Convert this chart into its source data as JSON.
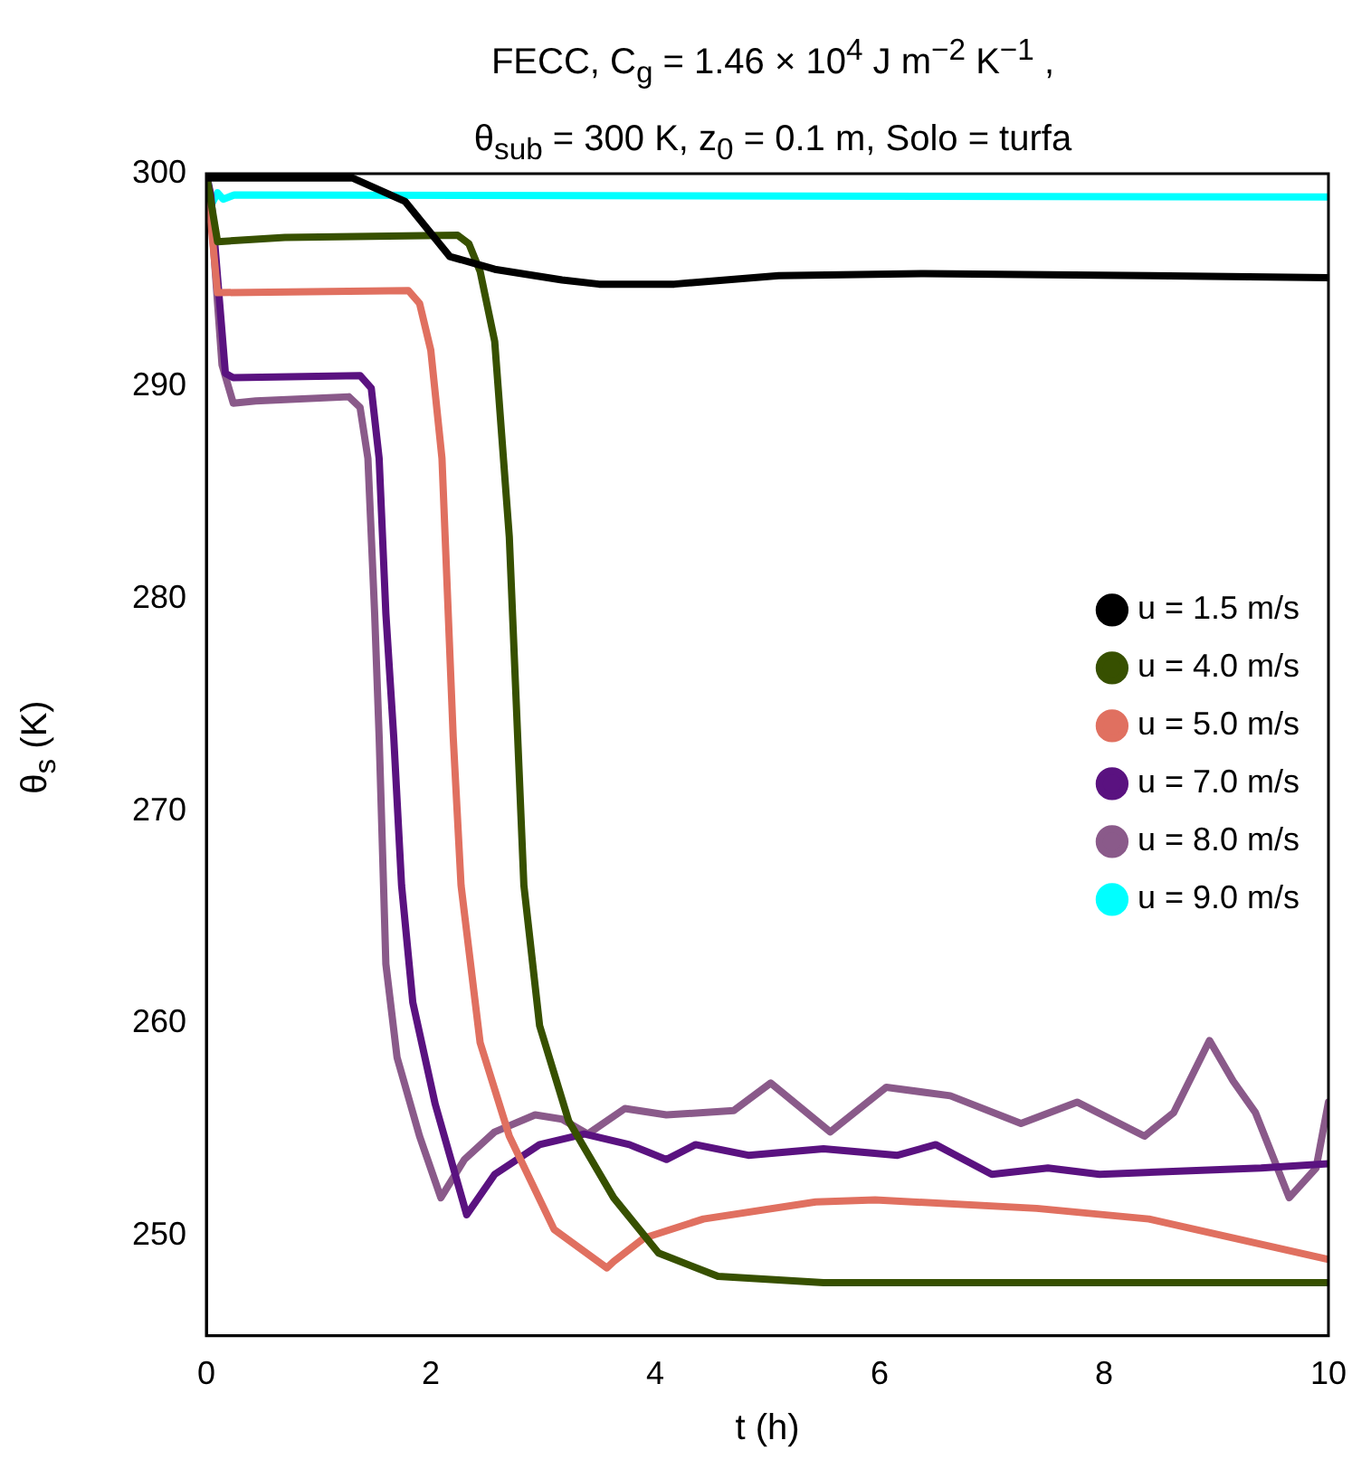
{
  "chart_data": {
    "type": "line",
    "title": "FECC, C$_{g}$ = 1.46 × 10$^{4}$ J m$^{−2}$ K$^{−1}$ ,",
    "subtitle": "θ$_{sub}$ = 300 K, z$_{0}$ = 0.1 m, Solo = turfa",
    "xlabel": "t (h)",
    "ylabel": "θ$_{s}$ (K)",
    "xlim": [
      0,
      10
    ],
    "xticks": [
      0,
      2,
      4,
      6,
      8,
      10
    ],
    "ylim": [
      245.3,
      300
    ],
    "yticks": [
      250,
      260,
      270,
      280,
      290,
      300
    ],
    "grid": false,
    "legend": "right",
    "marker": "none",
    "line_style": "solid",
    "series": [
      {
        "name": "u = 1.5 m/s",
        "color": "#000000",
        "x": [
          0,
          1.3,
          1.77,
          2.17,
          2.57,
          3.17,
          3.5,
          4.17,
          5.1,
          6.4,
          8.4,
          10
        ],
        "values": [
          299.8,
          299.8,
          298.7,
          296.1,
          295.5,
          295.0,
          294.8,
          294.8,
          295.2,
          295.3,
          295.2,
          295.1
        ]
      },
      {
        "name": "u = 4.0 m/s",
        "color": "#375000",
        "x": [
          0,
          0.1,
          0.7,
          2.24,
          2.34,
          2.44,
          2.57,
          2.7,
          2.83,
          2.97,
          3.23,
          3.63,
          4.03,
          4.56,
          5.5,
          10
        ],
        "values": [
          300,
          296.8,
          297.0,
          297.1,
          296.7,
          295.4,
          292.1,
          282.9,
          266.5,
          259.9,
          255.4,
          251.8,
          249.2,
          248.1,
          247.8,
          247.8
        ]
      },
      {
        "name": "u = 5.0 m/s",
        "color": "#e07060",
        "x": [
          0,
          0.1,
          1.8,
          1.9,
          2.0,
          2.1,
          2.2,
          2.27,
          2.44,
          2.7,
          3.1,
          3.57,
          3.63,
          3.9,
          4.43,
          5.43,
          5.96,
          7.4,
          8.4,
          10
        ],
        "values": [
          300,
          294.4,
          294.5,
          293.9,
          291.7,
          286.6,
          273.5,
          266.5,
          259.1,
          254.7,
          250.3,
          248.5,
          248.8,
          249.9,
          250.8,
          251.6,
          251.7,
          251.3,
          250.8,
          248.9
        ]
      },
      {
        "name": "u = 7.0 m/s",
        "color": "#5a1280",
        "x": [
          0,
          0.04,
          0.17,
          0.24,
          1.37,
          1.47,
          1.54,
          1.6,
          1.67,
          1.74,
          1.84,
          2.04,
          2.32,
          2.57,
          2.97,
          3.37,
          3.77,
          4.1,
          4.36,
          4.83,
          5.5,
          6.16,
          6.5,
          7.0,
          7.5,
          7.96,
          9.4,
          10
        ],
        "values": [
          300,
          299.0,
          290.6,
          290.4,
          290.5,
          289.9,
          286.6,
          279.3,
          273.5,
          266.5,
          261.0,
          256.2,
          251.0,
          252.9,
          254.3,
          254.8,
          254.3,
          253.6,
          254.3,
          253.8,
          254.1,
          253.8,
          254.3,
          252.9,
          253.2,
          252.9,
          253.2,
          253.4
        ]
      },
      {
        "name": "u = 8.0 m/s",
        "color": "#8a5a8a",
        "x": [
          0,
          0.04,
          0.14,
          0.24,
          0.44,
          1.27,
          1.37,
          1.44,
          1.5,
          1.54,
          1.6,
          1.7,
          1.9,
          2.09,
          2.3,
          2.57,
          2.93,
          3.17,
          3.4,
          3.73,
          4.1,
          4.7,
          5.03,
          5.56,
          6.06,
          6.63,
          7.26,
          7.76,
          8.36,
          8.62,
          8.94,
          9.15,
          9.35,
          9.65,
          9.89,
          10
        ],
        "values": [
          300,
          298.3,
          291.0,
          289.2,
          289.3,
          289.5,
          289.0,
          286.6,
          279.3,
          273.5,
          262.8,
          258.4,
          254.7,
          251.8,
          253.6,
          254.9,
          255.7,
          255.5,
          254.8,
          256.0,
          255.7,
          255.9,
          257.2,
          254.9,
          257.0,
          256.6,
          255.3,
          256.3,
          254.7,
          255.8,
          259.2,
          257.3,
          255.8,
          251.8,
          253.2,
          256.3
        ]
      },
      {
        "name": "u = 9.0 m/s",
        "color": "#00ffff",
        "x": [
          0,
          0.05,
          0.1,
          0.15,
          0.25,
          10
        ],
        "values": [
          300,
          298.6,
          299.1,
          298.8,
          299.0,
          298.9
        ]
      }
    ]
  }
}
